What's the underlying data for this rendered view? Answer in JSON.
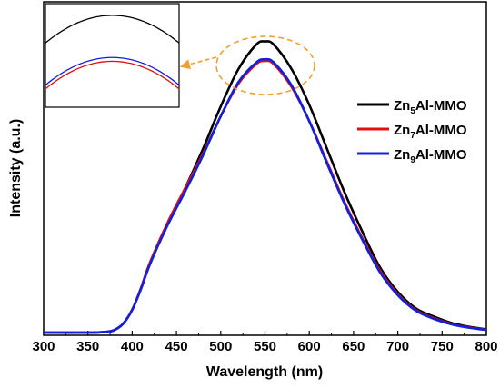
{
  "chart_data": {
    "type": "line",
    "xlabel": "Wavelength (nm)",
    "ylabel": "Intensity (a.u.)",
    "xlim": [
      300,
      800
    ],
    "xticks": [
      300,
      350,
      400,
      450,
      500,
      550,
      600,
      650,
      700,
      750,
      800
    ],
    "yticks_shown": false,
    "grid": false,
    "legend_position": "right",
    "x": [
      300,
      350,
      370,
      380,
      390,
      400,
      410,
      420,
      440,
      460,
      480,
      500,
      520,
      540,
      550,
      560,
      580,
      600,
      620,
      640,
      660,
      680,
      700,
      720,
      740,
      760,
      780,
      800
    ],
    "series": [
      {
        "name_base": "Zn",
        "name_sub": "5",
        "name_rest": "Al-MMO",
        "color": "#000000",
        "values": [
          0.0,
          0.0,
          0.2,
          0.8,
          2.8,
          7.0,
          13.5,
          21.0,
          33.5,
          44.5,
          56.5,
          69.5,
          81.0,
          88.5,
          89.5,
          88.5,
          81.0,
          70.0,
          56.5,
          43.0,
          31.0,
          20.0,
          12.5,
          7.5,
          5.0,
          3.0,
          1.8,
          1.0
        ]
      },
      {
        "name_base": "Zn",
        "name_sub": "7",
        "name_rest": "Al-MMO",
        "color": "#e01010",
        "values": [
          0.0,
          0.0,
          0.2,
          0.8,
          2.8,
          7.0,
          13.8,
          21.5,
          33.8,
          44.5,
          55.0,
          66.5,
          76.5,
          82.5,
          83.5,
          82.5,
          75.5,
          65.0,
          52.5,
          40.0,
          29.0,
          19.0,
          11.8,
          7.0,
          4.5,
          2.7,
          1.6,
          0.9
        ]
      },
      {
        "name_base": "Zn",
        "name_sub": "9",
        "name_rest": "Al-MMO",
        "color": "#1020e0",
        "values": [
          0.0,
          0.0,
          0.2,
          0.8,
          2.8,
          7.0,
          13.5,
          21.0,
          33.0,
          43.5,
          54.5,
          66.5,
          77.0,
          83.0,
          84.0,
          83.0,
          76.0,
          65.0,
          52.0,
          39.5,
          28.5,
          18.5,
          11.5,
          6.8,
          4.3,
          2.6,
          1.5,
          0.8
        ]
      }
    ],
    "annotations": {
      "peak_highlight": "dashed ellipse around peak region",
      "highlight_color": "#f0a030",
      "inset": "magnified view of peak region"
    }
  }
}
